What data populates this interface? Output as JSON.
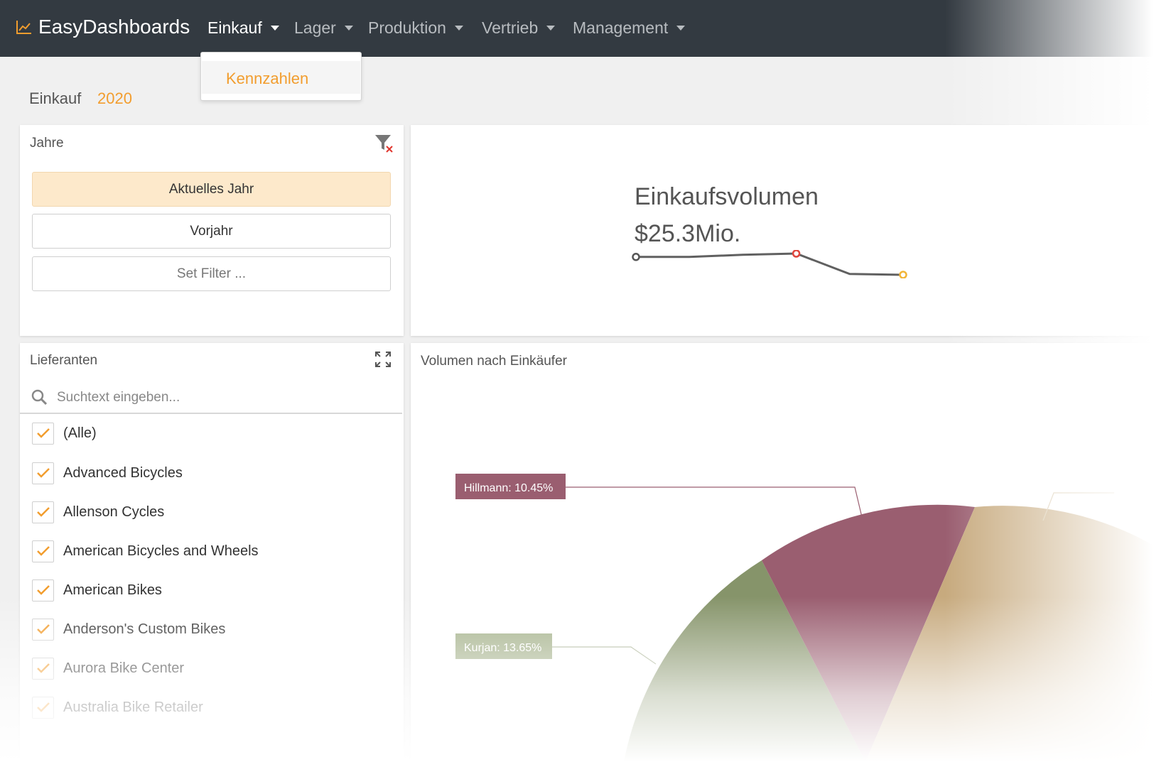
{
  "navbar": {
    "brand": "EasyDashboards",
    "menu": [
      {
        "label": "Einkauf",
        "active": true
      },
      {
        "label": "Lager",
        "active": false
      },
      {
        "label": "Produktion",
        "active": false
      },
      {
        "label": "Vertrieb",
        "active": false
      },
      {
        "label": "Management",
        "active": false
      }
    ],
    "dropdown": {
      "item": "Kennzahlen"
    }
  },
  "page": {
    "title": "Einkauf",
    "year": "2020"
  },
  "years_panel": {
    "title": "Jahre",
    "buttons": [
      {
        "label": "Aktuelles Jahr",
        "selected": true
      },
      {
        "label": "Vorjahr",
        "selected": false
      },
      {
        "label": "Set Filter ...",
        "selected": false
      }
    ]
  },
  "kpi": {
    "title": "Einkaufsvolumen",
    "value": "$25.3Mio.",
    "sparkline": [
      0.96,
      0.96,
      0.985,
      1.0,
      0.76,
      0.75
    ]
  },
  "suppliers_panel": {
    "title": "Lieferanten",
    "search_placeholder": "Suchtext eingeben...",
    "items": [
      {
        "label": "(Alle)",
        "checked": true
      },
      {
        "label": "Advanced Bicycles",
        "checked": true
      },
      {
        "label": "Allenson Cycles",
        "checked": true
      },
      {
        "label": "American Bicycles and Wheels",
        "checked": true
      },
      {
        "label": "American Bikes",
        "checked": true
      },
      {
        "label": "Anderson's Custom Bikes",
        "checked": true
      },
      {
        "label": "Aurora Bike Center",
        "checked": true
      },
      {
        "label": "Australia Bike Retailer",
        "checked": true
      }
    ]
  },
  "pie_panel": {
    "title": "Volumen nach Einkäufer"
  },
  "chart_data": {
    "type": "pie",
    "title": "Volumen nach Einkäufer",
    "slices": [
      {
        "name": "Hillmann",
        "label": "Hillmann: 10.45%",
        "value": 10.45,
        "color": "#9a5e70"
      },
      {
        "name": "Kurjan",
        "label": "Kurjan: 13.65%",
        "value": 13.65,
        "color": "#86946a"
      }
    ],
    "colors": {
      "third_slice": "#c7aa7e",
      "label_text": "#ffffff"
    }
  },
  "colors": {
    "accent": "#f29d2e",
    "navbar": "#333a41",
    "selected_bg": "#fde9cb"
  }
}
